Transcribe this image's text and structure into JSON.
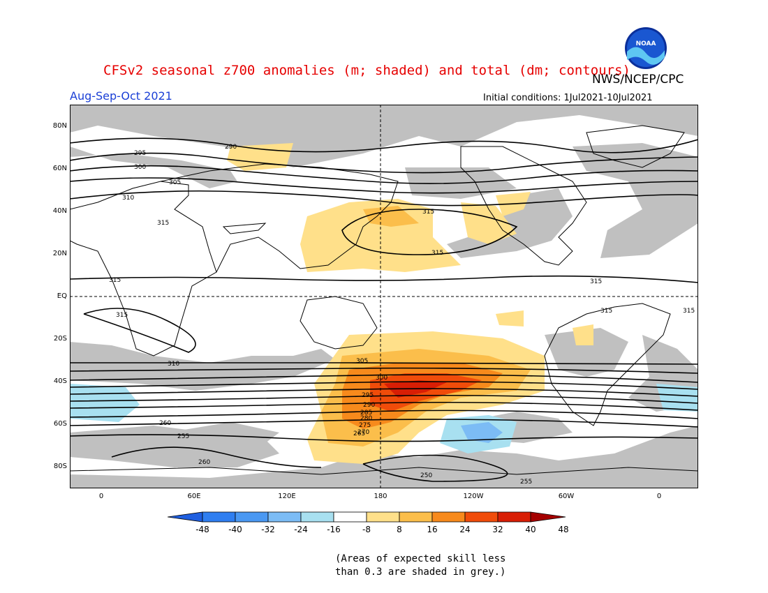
{
  "header": {
    "title": "CFSv2 seasonal z700 anomalies (m; shaded) and total (dm; contours)",
    "season": "Aug-Sep-Oct 2021",
    "credit": "NWS/NCEP/CPC",
    "initial_conditions": "Initial conditions: 1Jul2021-10Jul2021",
    "logo_text": "NOAA"
  },
  "axes": {
    "lat_labels": [
      "80N",
      "60N",
      "40N",
      "20N",
      "EQ",
      "20S",
      "40S",
      "60S",
      "80S"
    ],
    "lon_labels": [
      "0",
      "60E",
      "120E",
      "180",
      "120W",
      "60W",
      "0"
    ]
  },
  "colorbar": {
    "labels": [
      "-48",
      "-40",
      "-32",
      "-24",
      "-16",
      "-8",
      "8",
      "16",
      "24",
      "32",
      "40",
      "48"
    ],
    "colors": [
      "#1f5fe0",
      "#2f7ef0",
      "#4a98f2",
      "#7cbcf5",
      "#a8e0f0",
      "#ffffff",
      "#ffe08a",
      "#fbbe4b",
      "#f78a1c",
      "#f04c0a",
      "#d81e05",
      "#a50000"
    ]
  },
  "contours": {
    "labels": [
      "290",
      "295",
      "300",
      "305",
      "310",
      "315",
      "315",
      "315",
      "315",
      "315",
      "315",
      "315",
      "315",
      "310",
      "305",
      "300",
      "295",
      "290",
      "285",
      "280",
      "275",
      "270",
      "265",
      "260",
      "255",
      "250",
      "260",
      "255"
    ]
  },
  "footnote": {
    "line1": "(Areas of expected skill less",
    "line2": "than 0.3 are shaded in grey.)"
  },
  "colors": {
    "title": "#e60000",
    "season": "#1a3fd6",
    "skill_grey": "#c0c0c0"
  }
}
